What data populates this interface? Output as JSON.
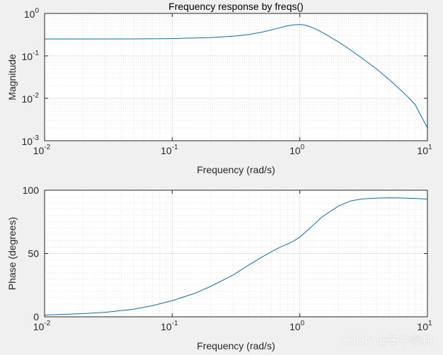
{
  "watermark": "CSDN @笨牛慢耕",
  "colors": {
    "line": "#0072bd",
    "axis": "#262626",
    "grid": "#e4e4e4",
    "figure_bg": "#f0f0f0",
    "axes_bg": "#ffffff"
  },
  "chart_data": [
    {
      "type": "line",
      "title": "Frequency response by freqs()",
      "xlabel": "Frequency (rad/s)",
      "ylabel": "Magnitude",
      "xscale": "log",
      "yscale": "log",
      "xlim": [
        0.01,
        10
      ],
      "ylim": [
        0.001,
        1
      ],
      "xticks": [
        {
          "value": 0.01,
          "base": "10",
          "exp": "-2"
        },
        {
          "value": 0.1,
          "base": "10",
          "exp": "-1"
        },
        {
          "value": 1,
          "base": "10",
          "exp": "0"
        },
        {
          "value": 10,
          "base": "10",
          "exp": "1"
        }
      ],
      "yticks": [
        {
          "value": 0.001,
          "base": "10",
          "exp": "-3"
        },
        {
          "value": 0.01,
          "base": "10",
          "exp": "-2"
        },
        {
          "value": 0.1,
          "base": "10",
          "exp": "-1"
        },
        {
          "value": 1,
          "base": "10",
          "exp": "0"
        }
      ],
      "grid": true,
      "minor_grid": true,
      "series": [
        {
          "x": [
            0.01,
            0.02,
            0.05,
            0.1,
            0.2,
            0.3,
            0.4,
            0.5,
            0.6,
            0.7,
            0.8,
            0.9,
            1.0,
            1.1,
            1.2,
            1.4,
            1.6,
            2.0,
            2.5,
            3.0,
            4.0,
            5.0,
            6.0,
            7.0,
            8.0,
            10.0
          ],
          "y": [
            0.25,
            0.25,
            0.251,
            0.255,
            0.27,
            0.29,
            0.32,
            0.36,
            0.41,
            0.46,
            0.51,
            0.54,
            0.55,
            0.53,
            0.49,
            0.4,
            0.32,
            0.215,
            0.138,
            0.093,
            0.049,
            0.028,
            0.017,
            0.0109,
            0.0072,
            0.002
          ]
        }
      ]
    },
    {
      "type": "line",
      "title": "",
      "xlabel": "Frequency (rad/s)",
      "ylabel": "Phase (degrees)",
      "xscale": "log",
      "yscale": "linear",
      "xlim": [
        0.01,
        10
      ],
      "ylim": [
        0,
        100
      ],
      "xticks": [
        {
          "value": 0.01,
          "base": "10",
          "exp": "-2"
        },
        {
          "value": 0.1,
          "base": "10",
          "exp": "-1"
        },
        {
          "value": 1,
          "base": "10",
          "exp": "0"
        },
        {
          "value": 10,
          "base": "10",
          "exp": "1"
        }
      ],
      "yticks": [
        {
          "value": 0,
          "label": "0"
        },
        {
          "value": 50,
          "label": "50"
        },
        {
          "value": 100,
          "label": "100"
        }
      ],
      "grid": true,
      "minor_grid": true,
      "series": [
        {
          "x": [
            0.01,
            0.02,
            0.03,
            0.05,
            0.07,
            0.1,
            0.15,
            0.2,
            0.3,
            0.4,
            0.5,
            0.6,
            0.7,
            0.8,
            0.9,
            1.0,
            1.2,
            1.5,
            2.0,
            2.5,
            3.0,
            4.0,
            5.0,
            6.0,
            7.0,
            8.0,
            10.0
          ],
          "y": [
            1.4,
            2.5,
            3.6,
            6.0,
            8.8,
            12.8,
            18.5,
            24.0,
            33.0,
            41.0,
            47.0,
            51.5,
            55.0,
            57.5,
            60.0,
            63.0,
            70.0,
            79.0,
            87.5,
            91.5,
            93.0,
            93.8,
            94.0,
            93.9,
            93.7,
            93.5,
            93.0
          ]
        }
      ]
    }
  ]
}
